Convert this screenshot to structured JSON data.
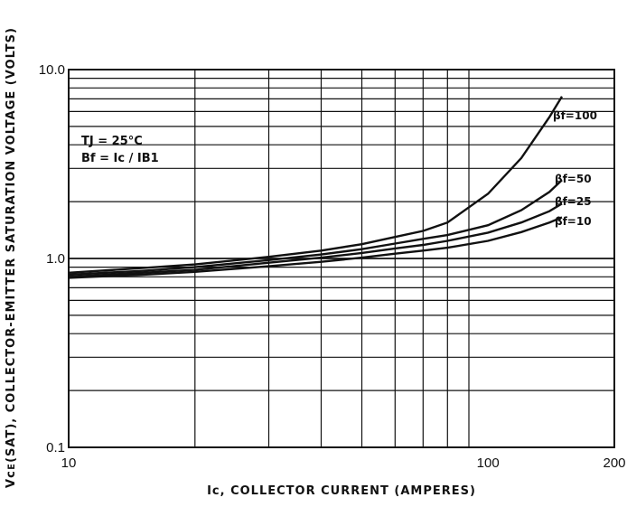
{
  "chart_data": {
    "type": "line",
    "xlabel": "Iᴄ, COLLECTOR CURRENT (AMPERES)",
    "ylabel": "Vᴄᴇ(SAT), COLLECTOR-EMITTER SATURATION VOLTAGE (VOLTS)",
    "x_scale": "log",
    "y_scale": "log",
    "xlim": [
      10,
      200
    ],
    "ylim": [
      0.1,
      10
    ],
    "x_ticks": [
      {
        "value": 10,
        "label": "10"
      },
      {
        "value": 100,
        "label": "100"
      },
      {
        "value": 200,
        "label": "200"
      }
    ],
    "y_ticks": [
      {
        "value": 10,
        "label": "10.0"
      },
      {
        "value": 1,
        "label": "1.0"
      },
      {
        "value": 0.1,
        "label": "0.1"
      }
    ],
    "grid": true,
    "annotations": [
      "TJ = 25°C",
      "Bf = Ic / IB1"
    ],
    "series": [
      {
        "name": "βf=100",
        "x": [
          10,
          15,
          20,
          30,
          40,
          50,
          60,
          70,
          80,
          100,
          120,
          140,
          150
        ],
        "y": [
          0.84,
          0.89,
          0.93,
          1.02,
          1.1,
          1.19,
          1.3,
          1.4,
          1.55,
          2.2,
          3.4,
          5.6,
          7.2
        ]
      },
      {
        "name": "βf=50",
        "x": [
          10,
          15,
          20,
          30,
          40,
          50,
          60,
          70,
          80,
          100,
          120,
          140,
          150
        ],
        "y": [
          0.82,
          0.86,
          0.9,
          0.98,
          1.05,
          1.12,
          1.2,
          1.27,
          1.33,
          1.5,
          1.8,
          2.25,
          2.6
        ]
      },
      {
        "name": "βf=25",
        "x": [
          10,
          15,
          20,
          30,
          40,
          50,
          60,
          70,
          80,
          100,
          120,
          140,
          150
        ],
        "y": [
          0.8,
          0.84,
          0.87,
          0.95,
          1.01,
          1.07,
          1.13,
          1.18,
          1.24,
          1.37,
          1.55,
          1.78,
          1.95
        ]
      },
      {
        "name": "βf=10",
        "x": [
          10,
          15,
          20,
          30,
          40,
          50,
          60,
          70,
          80,
          100,
          120,
          140,
          150
        ],
        "y": [
          0.79,
          0.82,
          0.85,
          0.91,
          0.96,
          1.01,
          1.06,
          1.1,
          1.14,
          1.24,
          1.38,
          1.55,
          1.65
        ]
      }
    ]
  }
}
